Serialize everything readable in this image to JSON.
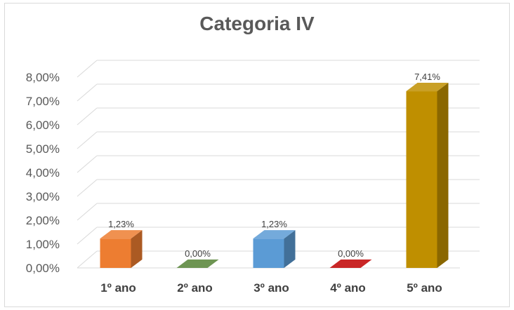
{
  "chart_data": {
    "type": "bar",
    "title": "Categoria IV",
    "categories": [
      "1º ano",
      "2º ano",
      "3º ano",
      "4º ano",
      "5º ano"
    ],
    "values": [
      1.23,
      0.0,
      1.23,
      0.0,
      7.41
    ],
    "data_labels": [
      "1,23%",
      "0,00%",
      "1,23%",
      "0,00%",
      "7,41%"
    ],
    "ylim": [
      0,
      8
    ],
    "yticks": [
      0,
      1,
      2,
      3,
      4,
      5,
      6,
      7,
      8
    ],
    "ytick_labels": [
      "0,00%",
      "1,00%",
      "2,00%",
      "3,00%",
      "4,00%",
      "5,00%",
      "6,00%",
      "7,00%",
      "8,00%"
    ],
    "colors": [
      "#ED7D31",
      "#548235",
      "#5B9BD5",
      "#C00000",
      "#BF8F00"
    ],
    "grid": true,
    "legend": "none",
    "style": "3d-column"
  }
}
